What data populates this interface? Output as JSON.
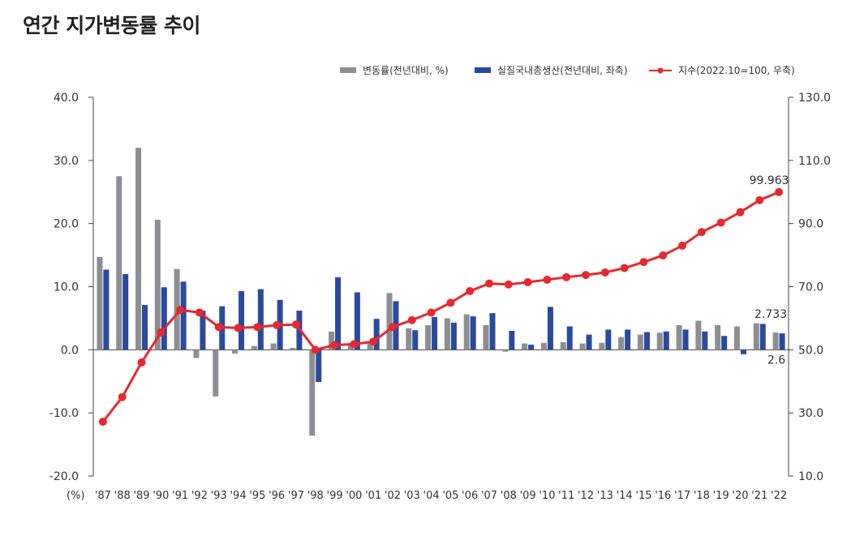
{
  "page": {
    "title": "연간 지가변동률 추이"
  },
  "chart_data": {
    "type": "bar",
    "title": "연간 지가변동률 추이",
    "unit_label": "(%)",
    "categories": [
      "'87",
      "'88",
      "'89",
      "'90",
      "'91",
      "'92",
      "'93",
      "'94",
      "'95",
      "'96",
      "'97",
      "'98",
      "'99",
      "'00",
      "'01",
      "'02",
      "'03",
      "'04",
      "'05",
      "'06",
      "'07",
      "'08",
      "'09",
      "'10",
      "'11",
      "'12",
      "'13",
      "'14",
      "'15",
      "'16",
      "'17",
      "'18",
      "'19",
      "'20",
      "'21",
      "'22"
    ],
    "legend_position": "top-right",
    "y_left": {
      "min": -20,
      "max": 40,
      "ticks": [
        "-20.0",
        "-10.0",
        "0.0",
        "10.0",
        "20.0",
        "30.0",
        "40.0"
      ]
    },
    "y_right": {
      "min": 10,
      "max": 130,
      "ticks": [
        "10.0",
        "30.0",
        "50.0",
        "70.0",
        "90.0",
        "110.0",
        "130.0"
      ]
    },
    "colors": {
      "bar1": "#8c8e91",
      "bar2": "#2a4a9e",
      "line": "#e5292e"
    },
    "series": [
      {
        "name": "변동률(전년대비, %)",
        "type": "bar",
        "axis": "left",
        "values": [
          14.7,
          27.5,
          32.0,
          20.6,
          12.8,
          -1.3,
          -7.4,
          -0.6,
          0.6,
          1.0,
          0.3,
          -13.6,
          2.9,
          0.7,
          1.3,
          9.0,
          3.4,
          3.9,
          5.0,
          5.6,
          3.9,
          -0.3,
          1.0,
          1.1,
          1.2,
          1.0,
          1.1,
          2.0,
          2.4,
          2.7,
          3.9,
          4.6,
          3.9,
          3.7,
          4.2,
          2.733
        ]
      },
      {
        "name": "실질국내총생산(전년대비, 좌축)",
        "type": "bar",
        "axis": "left",
        "values": [
          12.7,
          12.0,
          7.1,
          9.9,
          10.8,
          6.2,
          6.9,
          9.3,
          9.6,
          7.9,
          6.2,
          -5.1,
          11.5,
          9.1,
          4.9,
          7.7,
          3.1,
          5.2,
          4.3,
          5.3,
          5.8,
          3.0,
          0.8,
          6.8,
          3.7,
          2.4,
          3.2,
          3.2,
          2.8,
          2.9,
          3.2,
          2.9,
          2.2,
          -0.7,
          4.1,
          2.6
        ]
      },
      {
        "name": "지수(2022.10=100, 우축)",
        "type": "line",
        "axis": "right",
        "values": [
          27.2,
          35.0,
          46.0,
          55.5,
          62.6,
          61.8,
          57.2,
          56.9,
          57.2,
          57.8,
          58.0,
          50.0,
          51.5,
          51.8,
          52.6,
          57.2,
          59.4,
          61.8,
          64.9,
          68.6,
          71.0,
          70.7,
          71.4,
          72.2,
          73.0,
          73.7,
          74.5,
          75.9,
          77.8,
          79.9,
          83.0,
          87.3,
          90.3,
          93.6,
          97.4,
          99.963
        ]
      }
    ],
    "annotations": [
      "99.963",
      "2.733",
      "2.6"
    ]
  }
}
